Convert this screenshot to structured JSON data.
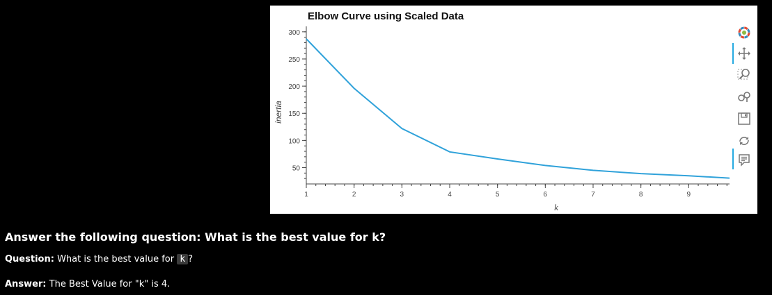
{
  "chart_data": {
    "type": "line",
    "title": "Elbow Curve using Scaled Data",
    "xlabel": "k",
    "ylabel": "inertia",
    "x": [
      1,
      2,
      3,
      4,
      5,
      6,
      7,
      8,
      9,
      10
    ],
    "y": [
      287,
      196,
      122,
      79,
      66,
      54,
      45,
      39,
      35,
      30
    ],
    "xlim": [
      1,
      10
    ],
    "ylim": [
      20,
      310
    ],
    "xticks": [
      "1",
      "2",
      "3",
      "4",
      "5",
      "6",
      "7",
      "8",
      "9",
      "10"
    ],
    "yticks": [
      "50",
      "100",
      "150",
      "200",
      "250",
      "300"
    ],
    "ytick_values": [
      50,
      100,
      150,
      200,
      250,
      300
    ],
    "line_color": "#30a2da",
    "grid": false
  },
  "toolbar": {
    "tools": [
      "logo-icon",
      "pan-icon",
      "box-zoom-icon",
      "wheel-zoom-icon",
      "save-icon",
      "reset-icon",
      "hover-icon"
    ]
  },
  "qa": {
    "heading": "Answer the following question: What is the best value for k?",
    "question_label": "Question:",
    "question_text": "What is the best value for",
    "question_code": "k",
    "question_end": "?",
    "answer_label": "Answer:",
    "answer_text": "The Best Value for \"k\" is 4."
  }
}
